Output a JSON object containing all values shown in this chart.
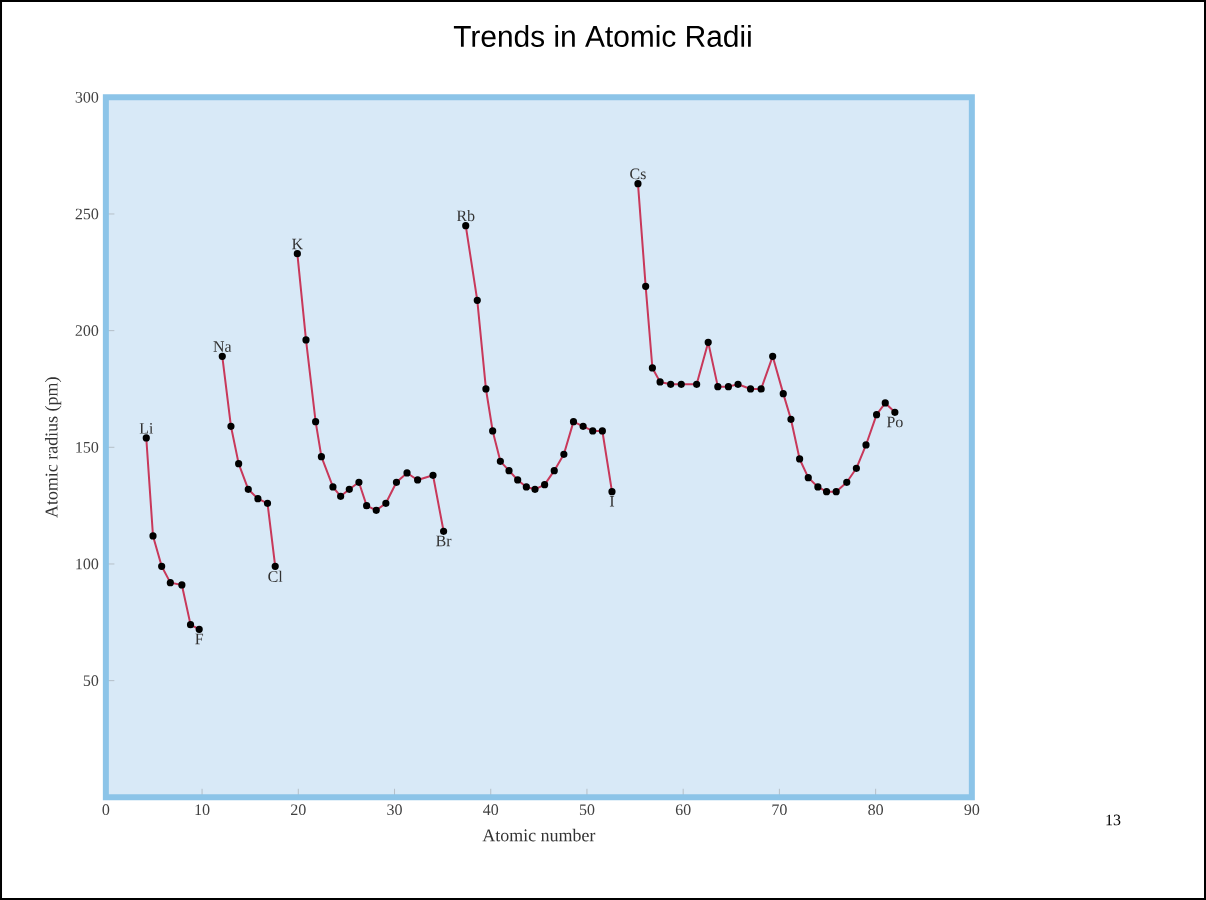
{
  "chart_data": {
    "type": "line",
    "title": "Trends in Atomic Radii",
    "xlabel": "Atomic number",
    "ylabel": "Atomic radius (pm)",
    "xlim": [
      0,
      90
    ],
    "xticks": [
      0,
      10,
      20,
      30,
      40,
      50,
      60,
      70,
      80,
      90
    ],
    "ylim": [
      0,
      300
    ],
    "yticks": [
      50,
      100,
      150,
      200,
      250,
      300
    ],
    "grid": false,
    "marker": "circle",
    "line_style": "solid",
    "series": [
      {
        "color": "#c8385a",
        "x": [
          4.2,
          4.9,
          5.8,
          6.7,
          7.9,
          8.8,
          9.7
        ],
        "values": [
          154,
          112,
          99,
          92,
          91,
          74,
          72
        ]
      },
      {
        "color": "#c8385a",
        "x": [
          12.1,
          13.0,
          13.8,
          14.8,
          15.8,
          16.8,
          17.6
        ],
        "values": [
          189,
          159,
          143,
          132,
          128,
          126,
          99
        ]
      },
      {
        "color": "#c8385a",
        "x": [
          19.9,
          20.8,
          21.8,
          22.4,
          23.6,
          24.4,
          25.3,
          26.3,
          27.1,
          28.1,
          29.1,
          30.2,
          31.3,
          32.4,
          34.0,
          35.1
        ],
        "values": [
          233,
          196,
          161,
          146,
          133,
          129,
          132,
          135,
          125,
          123,
          126,
          135,
          139,
          136,
          138,
          114
        ]
      },
      {
        "color": "#c8385a",
        "x": [
          37.4,
          38.6,
          39.5,
          40.2,
          41.0,
          41.9,
          42.8,
          43.7,
          44.6,
          45.6,
          46.6,
          47.6,
          48.6,
          49.6,
          50.6,
          51.6,
          52.6
        ],
        "values": [
          245,
          213,
          175,
          157,
          144,
          140,
          136,
          133,
          132,
          134,
          140,
          147,
          161,
          159,
          157,
          157,
          131
        ]
      },
      {
        "color": "#c8385a",
        "x": [
          55.3,
          56.1,
          56.8,
          57.6,
          58.7,
          59.8,
          61.4,
          62.6,
          63.6,
          64.7,
          65.7,
          67.0,
          68.1,
          69.3,
          70.4,
          71.2,
          72.1,
          73.0,
          74.0,
          74.9,
          75.9,
          77.0,
          78.0,
          79.0,
          80.1,
          81.0,
          82.0
        ],
        "values": [
          263,
          219,
          184,
          178,
          177,
          177,
          177,
          195,
          176,
          176,
          177,
          175,
          175,
          189,
          173,
          162,
          145,
          137,
          133,
          131,
          131,
          135,
          141,
          151,
          164,
          169,
          165
        ]
      }
    ],
    "annotations": [
      {
        "text": "Li",
        "x": 4.2,
        "y": 154
      },
      {
        "text": "F",
        "x": 9.7,
        "y": 72
      },
      {
        "text": "Na",
        "x": 12.1,
        "y": 189
      },
      {
        "text": "Cl",
        "x": 17.6,
        "y": 99
      },
      {
        "text": "K",
        "x": 19.9,
        "y": 233
      },
      {
        "text": "Br",
        "x": 35.1,
        "y": 114
      },
      {
        "text": "Rb",
        "x": 37.4,
        "y": 245
      },
      {
        "text": "I",
        "x": 52.6,
        "y": 131
      },
      {
        "text": "Cs",
        "x": 55.3,
        "y": 263
      },
      {
        "text": "Po",
        "x": 82.0,
        "y": 165
      },
      "13"
    ]
  }
}
